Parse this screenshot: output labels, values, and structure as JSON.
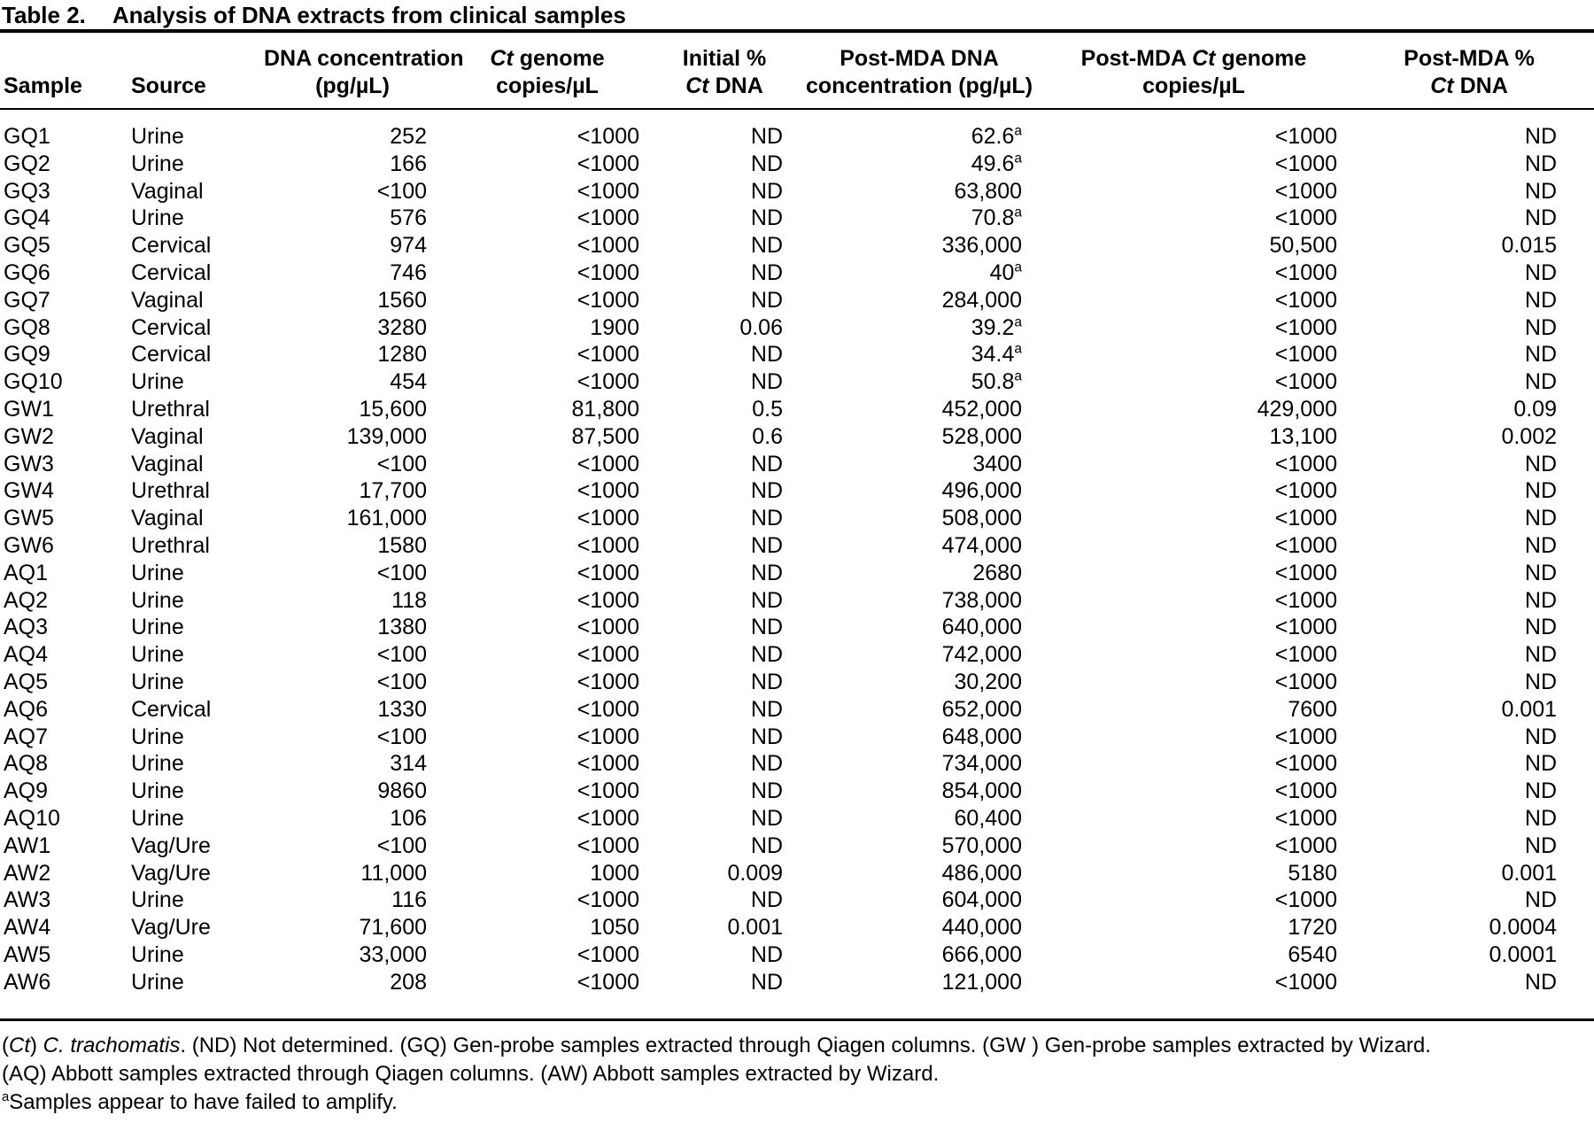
{
  "title": {
    "label": "Table 2.",
    "text": "Analysis of DNA extracts from clinical samples"
  },
  "table": {
    "columns": [
      {
        "id": "sample",
        "line1": "",
        "line2": "Sample"
      },
      {
        "id": "source",
        "line1": "",
        "line2": "Source"
      },
      {
        "id": "dna_concentration",
        "line1": "DNA concentration",
        "line2": "(pg/µL)"
      },
      {
        "id": "ct_genome_copies",
        "line1": "*Ct* genome",
        "line2": "copies/µL"
      },
      {
        "id": "initial_pct_ct_dna",
        "line1": "Initial %",
        "line2": "*Ct* DNA"
      },
      {
        "id": "post_mda_dna_concentration",
        "line1": "Post-MDA DNA",
        "line2": "concentration (pg/µL)"
      },
      {
        "id": "post_mda_ct_genome_copies",
        "line1": "Post-MDA *Ct* genome",
        "line2": "copies/µL"
      },
      {
        "id": "post_mda_pct_ct_dna",
        "line1": "Post-MDA %",
        "line2": "*Ct* DNA"
      }
    ],
    "rows": [
      [
        "GQ1",
        "Urine",
        "252",
        "<1000",
        "ND",
        "62.6^a^",
        "<1000",
        "ND"
      ],
      [
        "GQ2",
        "Urine",
        "166",
        "<1000",
        "ND",
        "49.6^a^",
        "<1000",
        "ND"
      ],
      [
        "GQ3",
        "Vaginal",
        "<100",
        "<1000",
        "ND",
        "63,800",
        "<1000",
        "ND"
      ],
      [
        "GQ4",
        "Urine",
        "576",
        "<1000",
        "ND",
        "70.8^a^",
        "<1000",
        "ND"
      ],
      [
        "GQ5",
        "Cervical",
        "974",
        "<1000",
        "ND",
        "336,000",
        "50,500",
        "0.015"
      ],
      [
        "GQ6",
        "Cervical",
        "746",
        "<1000",
        "ND",
        "40^a^",
        "<1000",
        "ND"
      ],
      [
        "GQ7",
        "Vaginal",
        "1560",
        "<1000",
        "ND",
        "284,000",
        "<1000",
        "ND"
      ],
      [
        "GQ8",
        "Cervical",
        "3280",
        "1900",
        "0.06",
        "39.2^a^",
        "<1000",
        "ND"
      ],
      [
        "GQ9",
        "Cervical",
        "1280",
        "<1000",
        "ND",
        "34.4^a^",
        "<1000",
        "ND"
      ],
      [
        "GQ10",
        "Urine",
        "454",
        "<1000",
        "ND",
        "50.8^a^",
        "<1000",
        "ND"
      ],
      [
        "GW1",
        "Urethral",
        "15,600",
        "81,800",
        "0.5",
        "452,000",
        "429,000",
        "0.09"
      ],
      [
        "GW2",
        "Vaginal",
        "139,000",
        "87,500",
        "0.6",
        "528,000",
        "13,100",
        "0.002"
      ],
      [
        "GW3",
        "Vaginal",
        "<100",
        "<1000",
        "ND",
        "3400",
        "<1000",
        "ND"
      ],
      [
        "GW4",
        "Urethral",
        "17,700",
        "<1000",
        "ND",
        "496,000",
        "<1000",
        "ND"
      ],
      [
        "GW5",
        "Vaginal",
        "161,000",
        "<1000",
        "ND",
        "508,000",
        "<1000",
        "ND"
      ],
      [
        "GW6",
        "Urethral",
        "1580",
        "<1000",
        "ND",
        "474,000",
        "<1000",
        "ND"
      ],
      [
        "AQ1",
        "Urine",
        "<100",
        "<1000",
        "ND",
        "2680",
        "<1000",
        "ND"
      ],
      [
        "AQ2",
        "Urine",
        "118",
        "<1000",
        "ND",
        "738,000",
        "<1000",
        "ND"
      ],
      [
        "AQ3",
        "Urine",
        "1380",
        "<1000",
        "ND",
        "640,000",
        "<1000",
        "ND"
      ],
      [
        "AQ4",
        "Urine",
        "<100",
        "<1000",
        "ND",
        "742,000",
        "<1000",
        "ND"
      ],
      [
        "AQ5",
        "Urine",
        "<100",
        "<1000",
        "ND",
        "30,200",
        "<1000",
        "ND"
      ],
      [
        "AQ6",
        "Cervical",
        "1330",
        "<1000",
        "ND",
        "652,000",
        "7600",
        "0.001"
      ],
      [
        "AQ7",
        "Urine",
        "<100",
        "<1000",
        "ND",
        "648,000",
        "<1000",
        "ND"
      ],
      [
        "AQ8",
        "Urine",
        "314",
        "<1000",
        "ND",
        "734,000",
        "<1000",
        "ND"
      ],
      [
        "AQ9",
        "Urine",
        "9860",
        "<1000",
        "ND",
        "854,000",
        "<1000",
        "ND"
      ],
      [
        "AQ10",
        "Urine",
        "106",
        "<1000",
        "ND",
        "60,400",
        "<1000",
        "ND"
      ],
      [
        "AW1",
        "Vag/Ure",
        "<100",
        "<1000",
        "ND",
        "570,000",
        "<1000",
        "ND"
      ],
      [
        "AW2",
        "Vag/Ure",
        "11,000",
        "1000",
        "0.009",
        "486,000",
        "5180",
        "0.001"
      ],
      [
        "AW3",
        "Urine",
        "116",
        "<1000",
        "ND",
        "604,000",
        "<1000",
        "ND"
      ],
      [
        "AW4",
        "Vag/Ure",
        "71,600",
        "1050",
        "0.001",
        "440,000",
        "1720",
        "0.0004"
      ],
      [
        "AW5",
        "Urine",
        "33,000",
        "<1000",
        "ND",
        "666,000",
        "6540",
        "0.0001"
      ],
      [
        "AW6",
        "Urine",
        "208",
        "<1000",
        "ND",
        "121,000",
        "<1000",
        "ND"
      ]
    ]
  },
  "footnotes": [
    "(*Ct*) *C. trachomatis*. (ND) Not determined. (GQ) Gen-probe samples extracted through Qiagen columns. (GW ) Gen-probe samples extracted by Wizard.",
    "(AQ) Abbott samples extracted through Qiagen columns. (AW) Abbott samples extracted by Wizard.",
    "^a^Samples appear to have failed to amplify."
  ]
}
